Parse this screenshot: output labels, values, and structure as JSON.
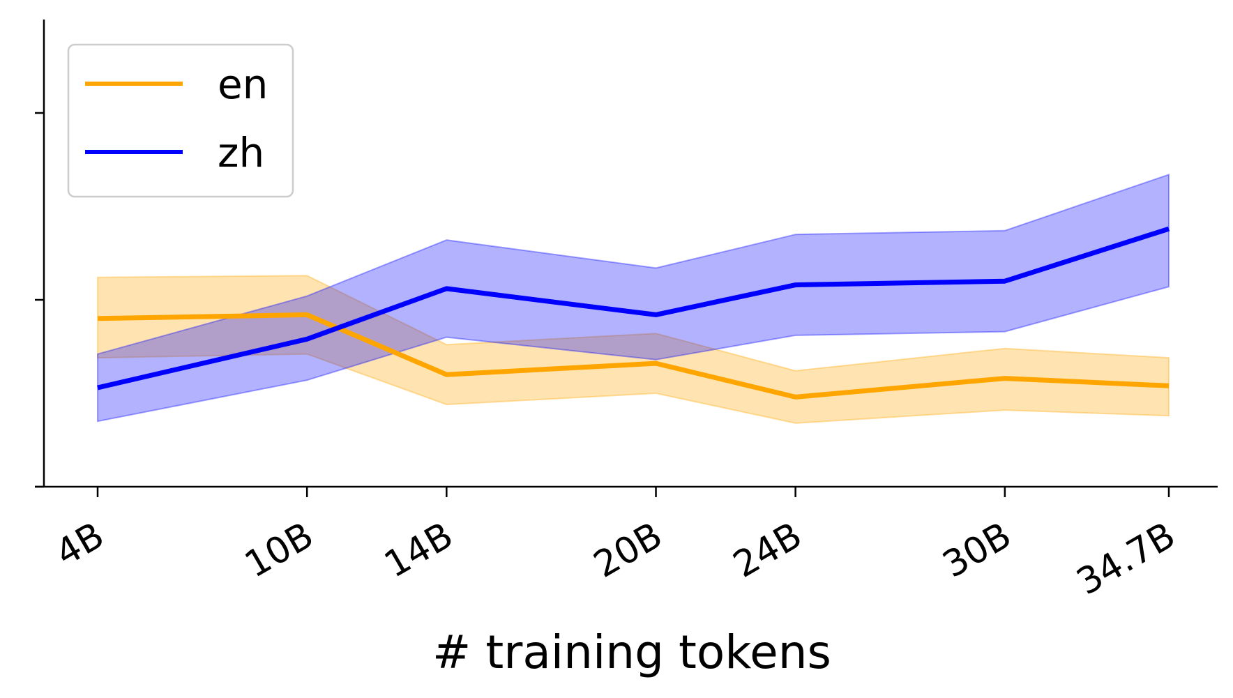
{
  "chart_data": {
    "type": "line",
    "xlabel": "# training tokens",
    "ylabel": "",
    "x": [
      4,
      10,
      14,
      20,
      24,
      30,
      34.7
    ],
    "x_tick_labels": [
      "4B",
      "10B",
      "14B",
      "20B",
      "24B",
      "30B",
      "34.7B"
    ],
    "xlim": [
      2.5,
      36.5
    ],
    "ylim": [
      0,
      2.5
    ],
    "y_ticks": [
      0,
      1,
      2
    ],
    "y_tick_labels_shown": false,
    "grid": false,
    "legend": {
      "placement": "top-left"
    },
    "series": [
      {
        "name": "en",
        "color": "#FFA500",
        "values": [
          0.9,
          0.92,
          0.6,
          0.66,
          0.48,
          0.58,
          0.54
        ],
        "lower": [
          0.69,
          0.71,
          0.44,
          0.5,
          0.34,
          0.41,
          0.38
        ],
        "upper": [
          1.12,
          1.13,
          0.76,
          0.82,
          0.62,
          0.74,
          0.69
        ]
      },
      {
        "name": "zh",
        "color": "#0000FF",
        "values": [
          0.53,
          0.79,
          1.06,
          0.92,
          1.08,
          1.1,
          1.38
        ],
        "lower": [
          0.35,
          0.57,
          0.8,
          0.68,
          0.81,
          0.83,
          1.07
        ],
        "upper": [
          0.71,
          1.02,
          1.32,
          1.17,
          1.35,
          1.37,
          1.67
        ]
      }
    ]
  }
}
